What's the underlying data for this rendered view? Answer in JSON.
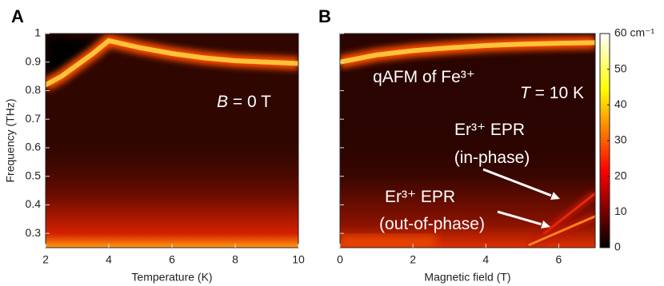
{
  "chart_data": [
    {
      "type": "heatmap",
      "label": "A",
      "xlabel": "Temperature (K)",
      "ylabel": "Frequency (THz)",
      "xlim": [
        2,
        10
      ],
      "xticks": [
        2,
        4,
        6,
        8,
        10
      ],
      "ylim": [
        0.25,
        1
      ],
      "yticks": [
        0.3,
        0.4,
        0.5,
        0.6,
        0.7,
        0.8,
        0.9,
        1
      ],
      "annotations": [
        {
          "italic": "B",
          "text": " = 0 T"
        }
      ],
      "series": [
        {
          "color": "#ffd040",
          "x": [
            2,
            2.5,
            3,
            3.5,
            4,
            5,
            6,
            7,
            8,
            9,
            10
          ],
          "values": [
            0.82,
            0.85,
            0.89,
            0.93,
            0.975,
            0.95,
            0.93,
            0.915,
            0.905,
            0.9,
            0.895
          ]
        }
      ]
    },
    {
      "type": "heatmap",
      "label": "B",
      "xlabel": "Magnetic field (T)",
      "xlim": [
        0,
        7
      ],
      "xticks": [
        0,
        2,
        4,
        6
      ],
      "ylim": [
        0.25,
        1
      ],
      "yticks": [
        0.3,
        0.4,
        0.5,
        0.6,
        0.7,
        0.8,
        0.9,
        1
      ],
      "annotations": [
        {
          "text": "qAFM of Fe³⁺"
        },
        {
          "italic": "T",
          "text": " = 10 K"
        },
        {
          "text": "Er³⁺ EPR"
        },
        {
          "text": "(in-phase)"
        },
        {
          "text": "Er³⁺ EPR"
        },
        {
          "text": "(out-of-phase)"
        }
      ],
      "series": [
        {
          "color": "#ffd040",
          "x": [
            0,
            1,
            2,
            3,
            4,
            5,
            6,
            7
          ],
          "values": [
            0.9,
            0.925,
            0.94,
            0.95,
            0.958,
            0.963,
            0.966,
            0.968
          ]
        },
        {
          "color": "#e83010",
          "x": [
            5.6,
            6.3,
            7
          ],
          "values": [
            0.3,
            0.37,
            0.44
          ]
        },
        {
          "color": "#ff9020",
          "x": [
            5.2,
            6.1,
            7
          ],
          "values": [
            0.26,
            0.31,
            0.36
          ]
        }
      ],
      "colorbar": {
        "lim": [
          0,
          60
        ],
        "ticks": [
          0,
          10,
          20,
          30,
          40,
          50,
          {
            "value": 60,
            "label": "60 cm⁻¹"
          }
        ]
      }
    }
  ]
}
